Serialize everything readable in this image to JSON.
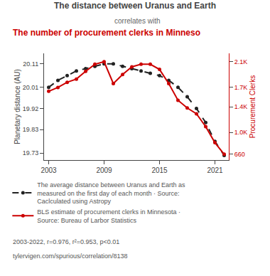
{
  "chart_data": {
    "type": "line",
    "title": "The distance between Uranus and Earth",
    "subtitle": "correlates with",
    "annotations": [
      "The number of procurement clerks in Minneso",
      "2003-2022, r=0.976, r²=0.953, p<0.01",
      "tylervigen.com/spurious/correlation/8138"
    ],
    "x": [
      2003,
      2004,
      2005,
      2006,
      2007,
      2008,
      2009,
      2010,
      2011,
      2012,
      2013,
      2014,
      2015,
      2016,
      2017,
      2018,
      2019,
      2020,
      2021,
      2022
    ],
    "xlim": [
      2002.5,
      2022.5
    ],
    "xticks": [
      2003,
      2009,
      2015,
      2021
    ],
    "ylabel": "Planetary distance (AU)",
    "ylim": [
      19.7,
      20.155
    ],
    "yticks": [
      19.73,
      19.83,
      19.92,
      20.01,
      20.11
    ],
    "y2label": "Procurement Clerks",
    "y2lim": [
      570,
      2230
    ],
    "y2ticks": [
      660,
      {
        "value": 1000,
        "label": "1.0K"
      },
      {
        "value": 1400,
        "label": "1.4K"
      },
      {
        "value": 1700,
        "label": "1.7K"
      },
      {
        "value": 2100,
        "label": "2.1K"
      }
    ],
    "grid": false,
    "legend": "bottom",
    "series": [
      {
        "name": "The average distance between Uranus and Earth as\nmeasured on the first day of each month · Source:\nCaclculated using Astropy",
        "color": "#222222",
        "line_style": "dashed",
        "marker": "circle",
        "values": [
          20.01,
          20.04,
          20.06,
          20.08,
          20.09,
          20.1,
          20.11,
          20.11,
          20.1,
          20.09,
          20.08,
          20.07,
          20.06,
          20.04,
          20.01,
          19.97,
          19.92,
          19.86,
          19.78,
          19.72
        ]
      },
      {
        "name": "BLS estimate of procurement clerks in Minnesota ·\nSource: Bureau of Larbor Statistics",
        "color": "#cc0000",
        "line_style": "solid",
        "marker": "circle",
        "axis": "y2",
        "values": [
          1640,
          1700,
          1780,
          1830,
          1950,
          2060,
          2100,
          1760,
          1900,
          2020,
          2060,
          2060,
          1980,
          1760,
          1500,
          1380,
          1290,
          1090,
          840,
          660
        ]
      }
    ]
  }
}
